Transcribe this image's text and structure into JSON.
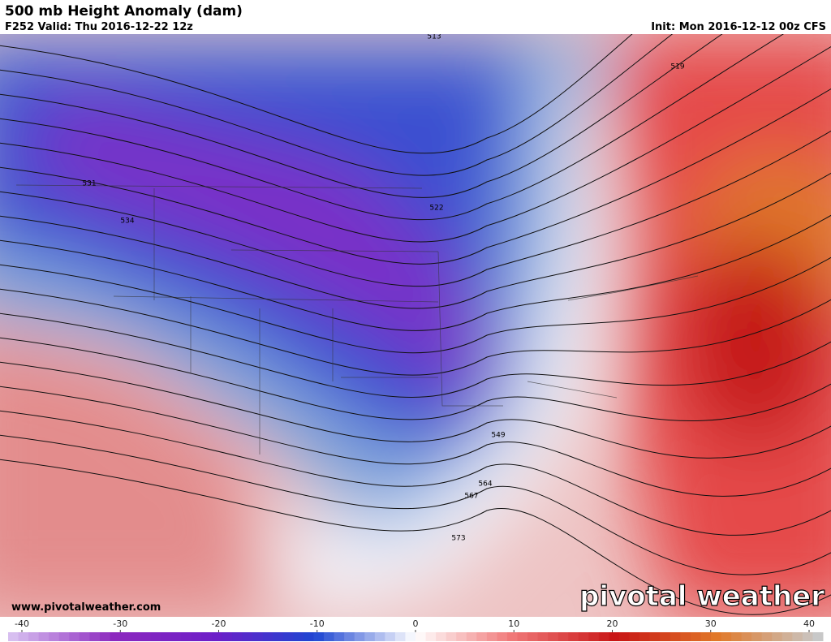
{
  "header": {
    "title": "500 mb Height Anomaly (dam)",
    "valid": "F252 Valid: Thu 2016-12-22 12z",
    "init": "Init: Mon 2016-12-12 00z CFS"
  },
  "map": {
    "contour_labels": [
      "513",
      "519",
      "531",
      "534",
      "522",
      "549",
      "564",
      "567",
      "573"
    ],
    "website": "www.pivotalweather.com",
    "logo": "pivotal weather"
  },
  "colorbar": {
    "range": [
      -40,
      40
    ],
    "ticks": [
      -40,
      -30,
      -20,
      -10,
      0,
      10,
      20,
      30,
      40
    ]
  }
}
